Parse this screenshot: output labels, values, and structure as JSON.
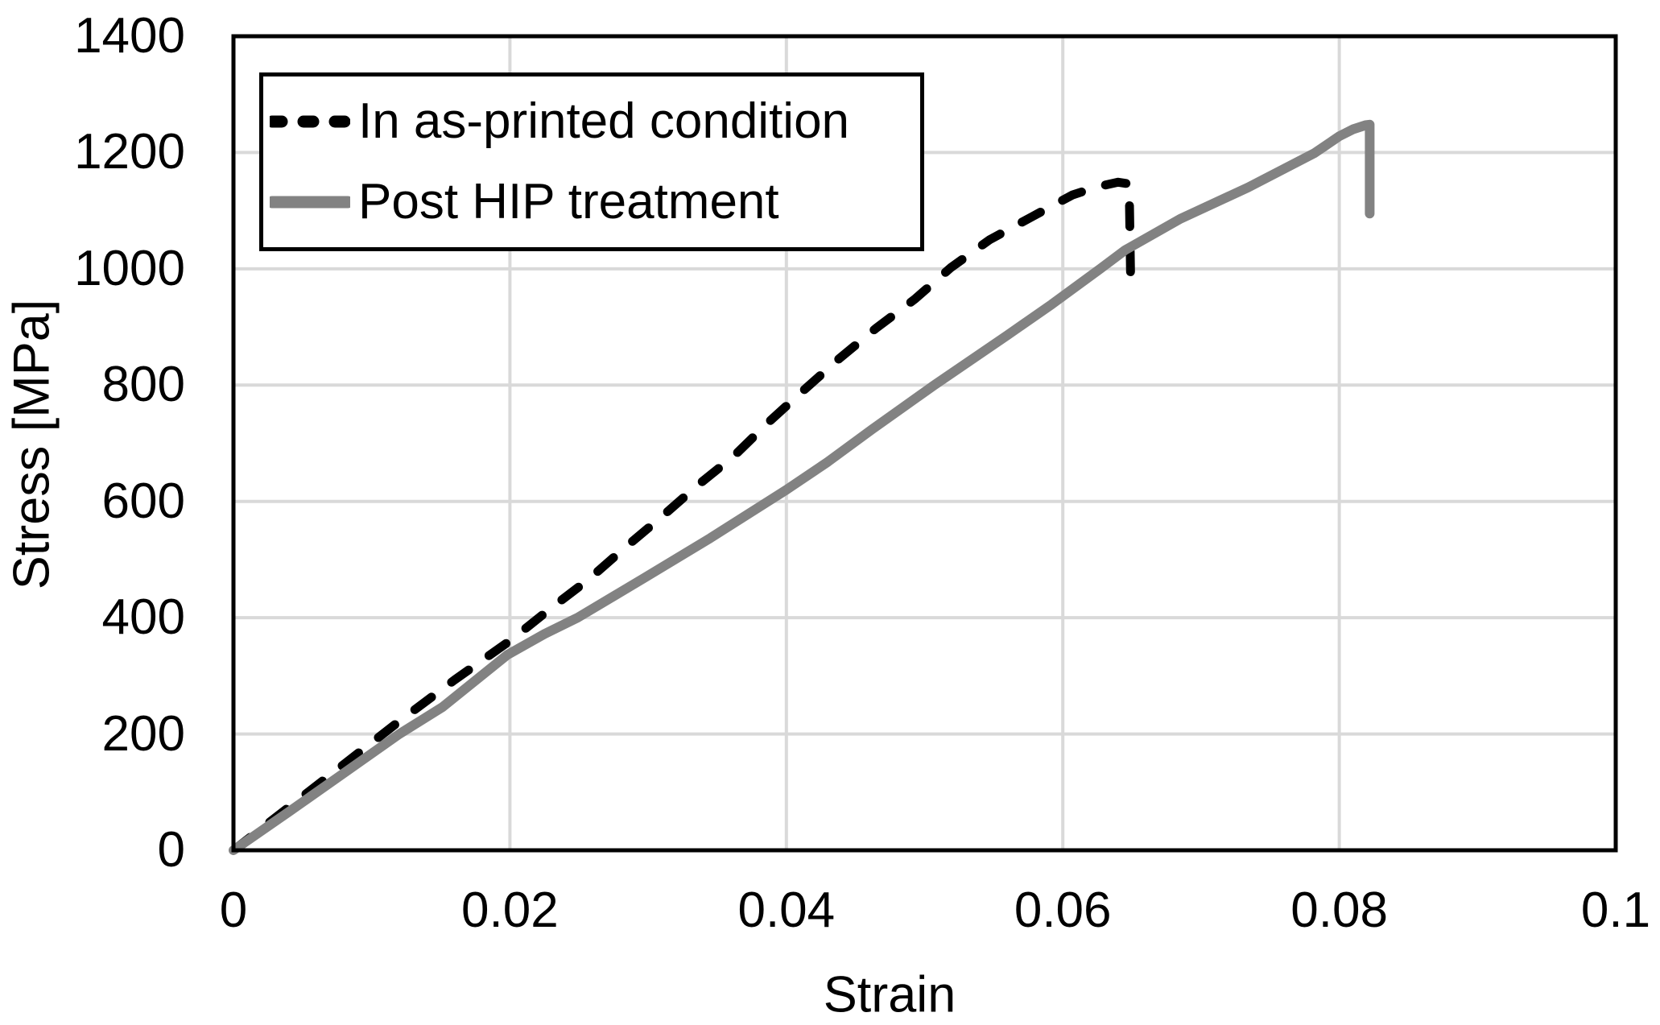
{
  "chart_data": {
    "type": "line",
    "title": "",
    "xlabel": "Strain",
    "ylabel": "Stress [MPa]",
    "xlim": [
      0,
      0.1
    ],
    "ylim": [
      0,
      1400
    ],
    "grid": true,
    "legend_position": "top-left",
    "x_ticks": {
      "values": [
        0,
        0.02,
        0.04,
        0.06,
        0.08,
        0.1
      ],
      "labels": [
        "0",
        "0.02",
        "0.04",
        "0.06",
        "0.08",
        "0.1"
      ]
    },
    "y_ticks": {
      "values": [
        0,
        200,
        400,
        600,
        800,
        1000,
        1200,
        1400
      ],
      "labels": [
        "0",
        "200",
        "400",
        "600",
        "800",
        "1000",
        "1200",
        "1400"
      ]
    },
    "series": [
      {
        "name": "In as-printed condition",
        "style": "dashed",
        "color": "#000000",
        "points": [
          [
            0,
            0
          ],
          [
            0.004,
            74
          ],
          [
            0.008,
            148
          ],
          [
            0.012,
            222
          ],
          [
            0.016,
            293
          ],
          [
            0.0201,
            362
          ],
          [
            0.0229,
            415
          ],
          [
            0.0257,
            466
          ],
          [
            0.0282,
            518
          ],
          [
            0.031,
            574
          ],
          [
            0.0335,
            626
          ],
          [
            0.0362,
            678
          ],
          [
            0.0387,
            736
          ],
          [
            0.0412,
            790
          ],
          [
            0.0438,
            845
          ],
          [
            0.0465,
            898
          ],
          [
            0.0493,
            948
          ],
          [
            0.0519,
            1002
          ],
          [
            0.0547,
            1050
          ],
          [
            0.0578,
            1090
          ],
          [
            0.0607,
            1127
          ],
          [
            0.0625,
            1141
          ],
          [
            0.064,
            1149
          ],
          [
            0.0648,
            1146
          ],
          [
            0.0649,
            995
          ]
        ]
      },
      {
        "name": "Post HIP treatment",
        "style": "solid",
        "color": "#828282",
        "points": [
          [
            0,
            0
          ],
          [
            0.004,
            66
          ],
          [
            0.008,
            133
          ],
          [
            0.012,
            200
          ],
          [
            0.0151,
            246
          ],
          [
            0.0198,
            336
          ],
          [
            0.0225,
            372
          ],
          [
            0.0249,
            400
          ],
          [
            0.0297,
            468
          ],
          [
            0.0345,
            537
          ],
          [
            0.04,
            620
          ],
          [
            0.043,
            668
          ],
          [
            0.0462,
            724
          ],
          [
            0.0507,
            800
          ],
          [
            0.056,
            886
          ],
          [
            0.0592,
            939
          ],
          [
            0.0627,
            1000
          ],
          [
            0.0645,
            1032
          ],
          [
            0.0685,
            1086
          ],
          [
            0.0734,
            1140
          ],
          [
            0.0782,
            1199
          ],
          [
            0.08,
            1228
          ],
          [
            0.081,
            1240
          ],
          [
            0.0819,
            1247
          ],
          [
            0.0822,
            1248
          ],
          [
            0.0822,
            1095
          ]
        ]
      }
    ],
    "colors": {
      "gridline": "#d9d9d9",
      "axis": "#000000",
      "background": "#ffffff",
      "text": "#000000"
    }
  }
}
